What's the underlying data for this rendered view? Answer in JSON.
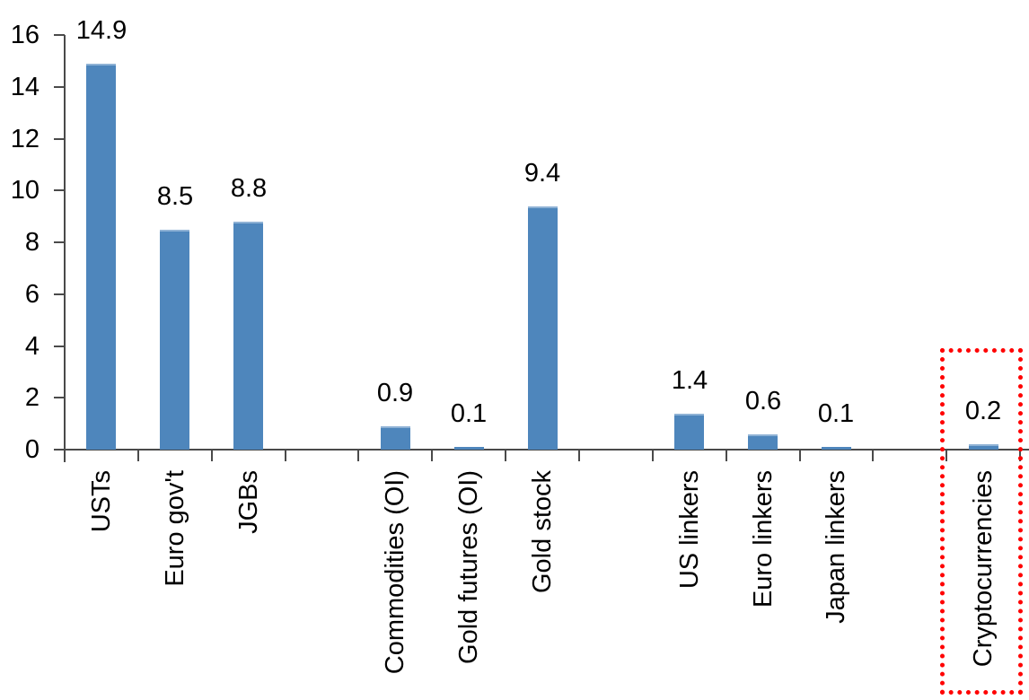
{
  "chart_data": {
    "type": "bar",
    "title": "",
    "xlabel": "",
    "ylabel": "",
    "categories": [
      "USTs",
      "Euro gov't",
      "JGBs",
      "Commodities (OI)",
      "Gold futures (OI)",
      "Gold stock",
      "US linkers",
      "Euro linkers",
      "Japan linkers",
      "Cryptocurrencies"
    ],
    "values": [
      14.9,
      8.5,
      8.8,
      0.9,
      0.1,
      9.4,
      1.4,
      0.6,
      0.1,
      0.2
    ],
    "value_labels": [
      "14.9",
      "8.5",
      "8.8",
      "0.9",
      "0.1",
      "9.4",
      "1.4",
      "0.6",
      "0.1",
      "0.2"
    ],
    "slot_index": [
      1,
      2,
      3,
      5,
      6,
      7,
      9,
      10,
      11,
      13
    ],
    "total_slots": 13,
    "ylim": [
      0,
      16
    ],
    "yticks": [
      0,
      2,
      4,
      6,
      8,
      10,
      12,
      14,
      16
    ],
    "grid": false,
    "legend": false,
    "bar_color": "#4E86BC",
    "bar_top_edge_color": "#8FB2D5",
    "axis_color": "#4A4A4A",
    "text_color": "#000000",
    "highlight": {
      "category": "Cryptocurrencies",
      "shape": "dotted-rectangle",
      "color": "#FF0000"
    }
  }
}
